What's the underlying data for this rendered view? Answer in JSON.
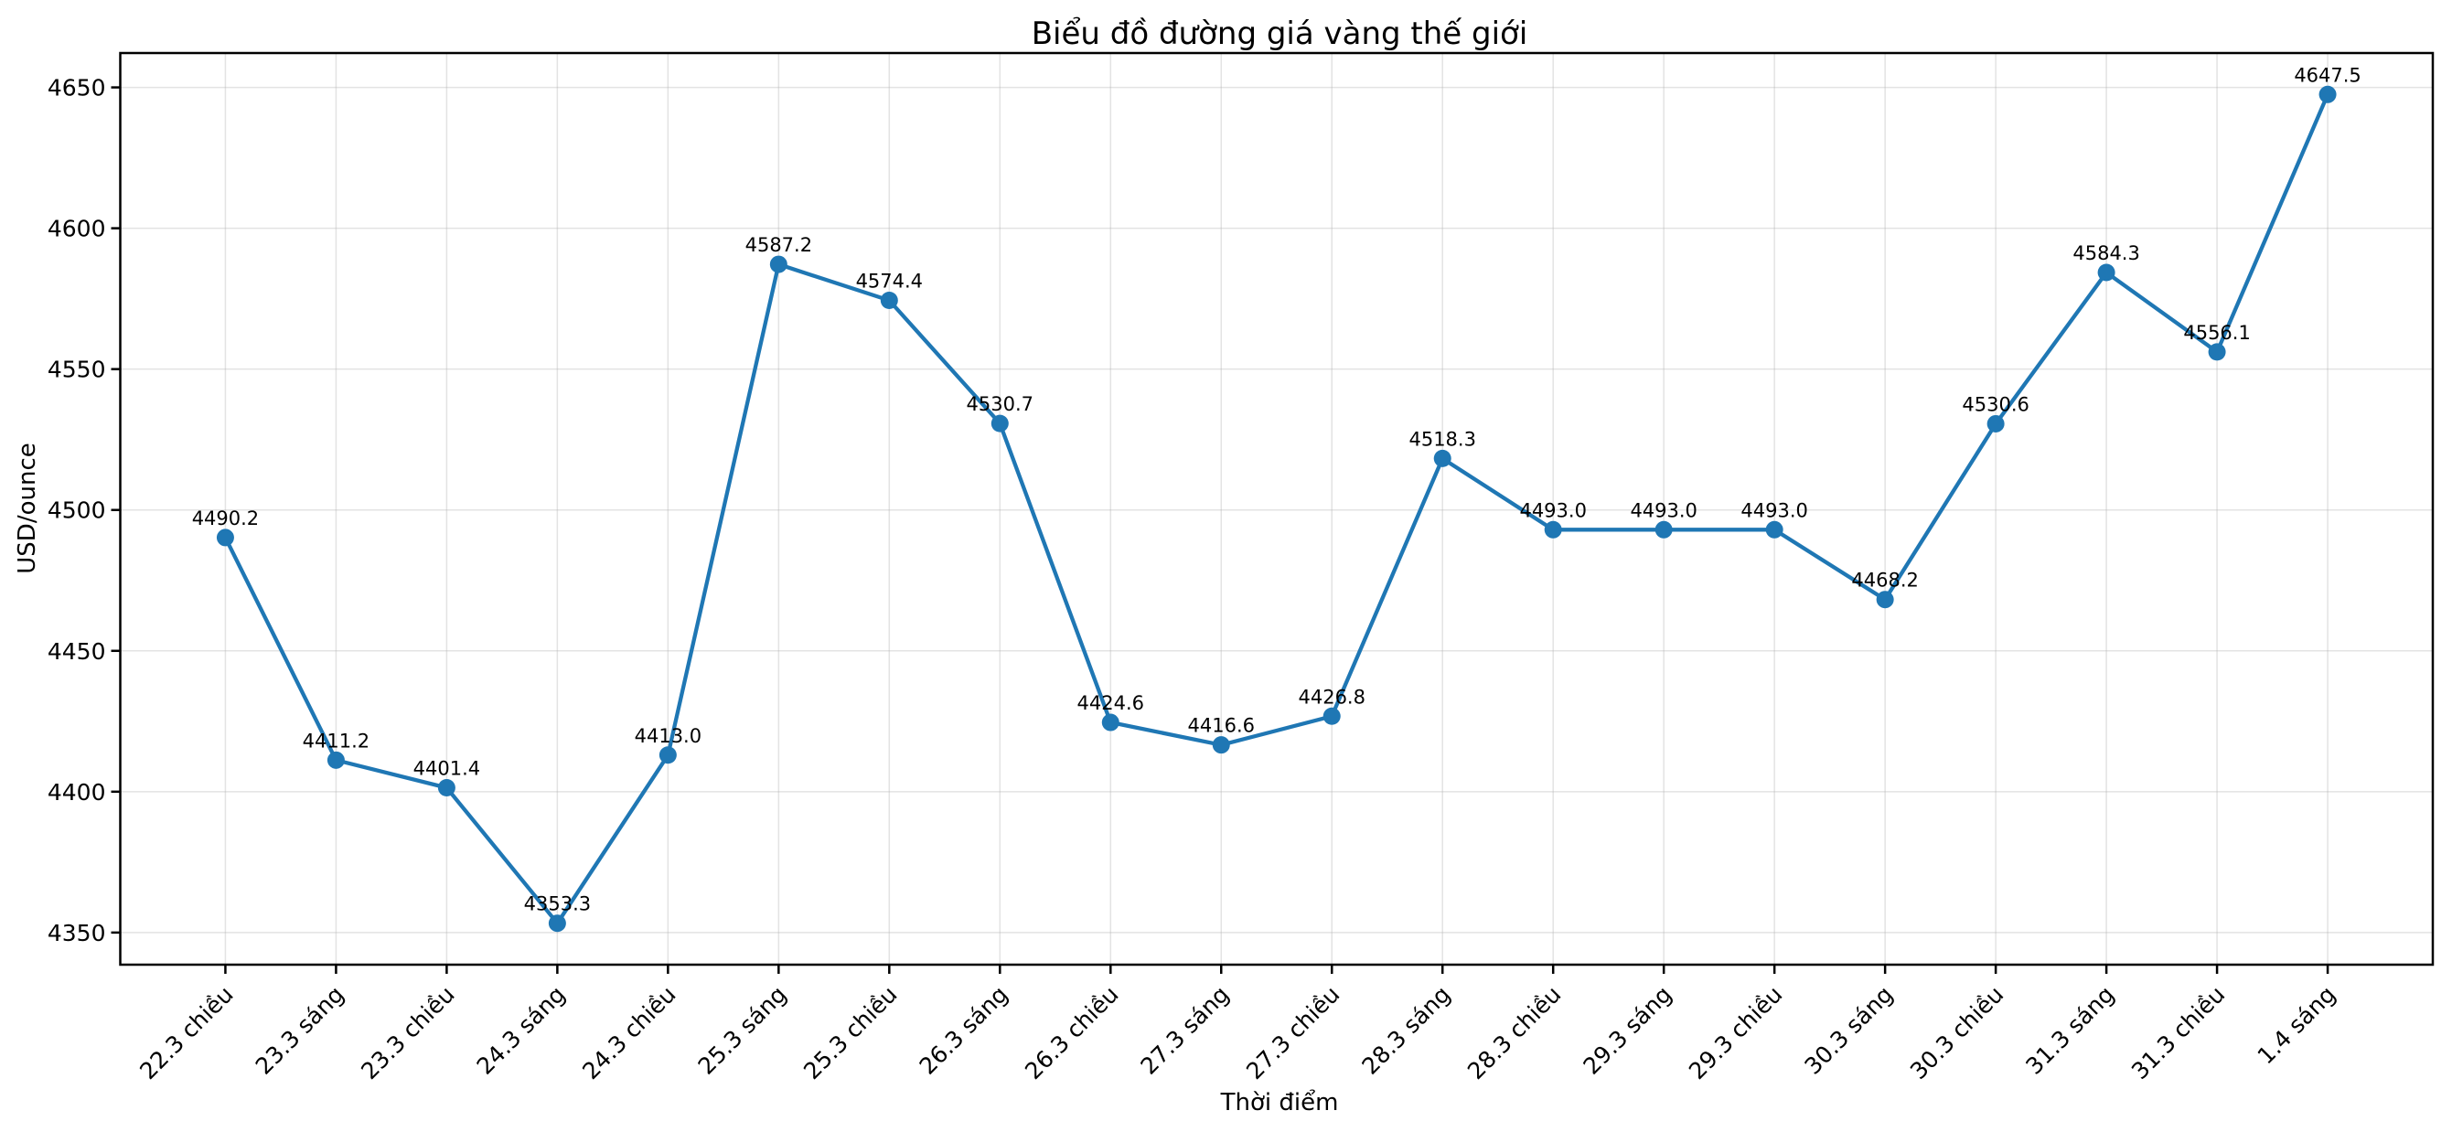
{
  "page": {
    "background_color": "#ffffff"
  },
  "chart_data": {
    "type": "line",
    "title": "Biểu đồ đường giá vàng thế giới",
    "xlabel": "Thời điểm",
    "ylabel": "USD/ounce",
    "categories": [
      "22.3 chiều",
      "23.3 sáng",
      "23.3 chiều",
      "24.3 sáng",
      "24.3 chiều",
      "25.3 sáng",
      "25.3 chiều",
      "26.3 sáng",
      "26.3 chiều",
      "27.3 sáng",
      "27.3 chiều",
      "28.3 sáng",
      "28.3 chiều",
      "29.3 sáng",
      "29.3 chiều",
      "30.3 sáng",
      "30.3 chiều",
      "31.3 sáng",
      "31.3 chiều",
      "1.4 sáng"
    ],
    "values": [
      4490.2,
      4411.2,
      4401.4,
      4353.3,
      4413.0,
      4587.2,
      4574.4,
      4530.7,
      4424.6,
      4416.6,
      4426.8,
      4518.3,
      4493.0,
      4493.0,
      4493.0,
      4468.2,
      4530.6,
      4584.3,
      4556.1,
      4647.5
    ],
    "point_labels": [
      "4490.2",
      "4411.2",
      "4401.4",
      "4353.3",
      "4413.0",
      "4587.2",
      "4574.4",
      "4530.7",
      "4424.6",
      "4416.6",
      "4426.8",
      "4518.3",
      "4493.0",
      "4493.0",
      "4493.0",
      "4468.2",
      "4530.6",
      "4584.3",
      "4556.1",
      "4647.5"
    ],
    "yticks": [
      4350,
      4400,
      4450,
      4500,
      4550,
      4600,
      4650
    ],
    "ylim": [
      4338.6,
      4662.2
    ],
    "xlim": [
      -0.95,
      19.95
    ],
    "grid": true,
    "legend_position": "none",
    "line_color": "#1f77b4",
    "marker_color": "#1f77b4",
    "marker_shape": "circle",
    "axis_color": "#000000",
    "grid_color": "#b0b0b0",
    "grid_alpha": 0.35
  }
}
